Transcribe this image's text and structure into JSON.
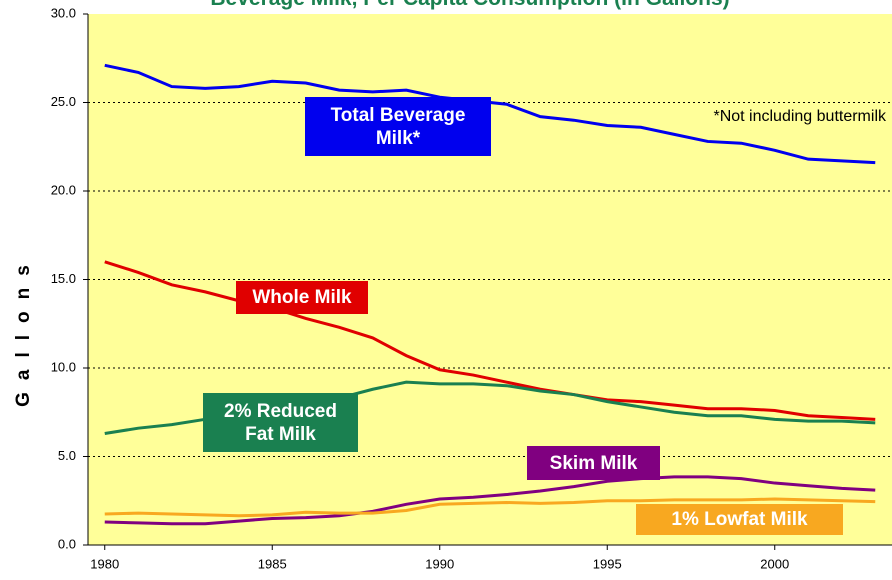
{
  "chart_data": {
    "type": "line",
    "title": "Beverage Milk, Per Capita Consumption (In Gallons)",
    "y_label": "Gallons",
    "annotation": "*Not including buttermilk",
    "x": [
      1980,
      1981,
      1982,
      1983,
      1984,
      1985,
      1986,
      1987,
      1988,
      1989,
      1990,
      1991,
      1992,
      1993,
      1994,
      1995,
      1996,
      1997,
      1998,
      1999,
      2000,
      2001,
      2002,
      2003
    ],
    "xlim": [
      1979.5,
      2003.5
    ],
    "xticks": [
      1980,
      1985,
      1990,
      1995,
      2000
    ],
    "ylim": [
      0,
      30
    ],
    "yticks": [
      {
        "value": 0,
        "label": "0.0"
      },
      {
        "value": 5,
        "label": "5.0"
      },
      {
        "value": 10,
        "label": "10.0"
      },
      {
        "value": 15,
        "label": "15.0"
      },
      {
        "value": 20,
        "label": "20.0"
      },
      {
        "value": 25,
        "label": "25.0"
      },
      {
        "value": 30,
        "label": "30.0"
      }
    ],
    "grid": true,
    "background": "#ffff99",
    "series": [
      {
        "name": "Total Beverage Milk*",
        "color": "#0000ee",
        "values": [
          27.1,
          26.7,
          25.9,
          25.8,
          25.9,
          26.2,
          26.1,
          25.7,
          25.6,
          25.7,
          25.3,
          25.1,
          24.9,
          24.2,
          24.0,
          23.7,
          23.6,
          23.2,
          22.8,
          22.7,
          22.3,
          21.8,
          21.7,
          21.6
        ]
      },
      {
        "name": "Whole Milk",
        "color": "#e00000",
        "values": [
          16.0,
          15.4,
          14.7,
          14.3,
          13.8,
          13.4,
          12.8,
          12.3,
          11.7,
          10.7,
          9.9,
          9.6,
          9.2,
          8.8,
          8.5,
          8.2,
          8.1,
          7.9,
          7.7,
          7.7,
          7.6,
          7.3,
          7.2,
          7.1
        ]
      },
      {
        "name": "2% Reduced Fat Milk",
        "color": "#1a8050",
        "values": [
          6.3,
          6.6,
          6.8,
          7.1,
          7.4,
          7.7,
          7.9,
          8.3,
          8.8,
          9.2,
          9.1,
          9.1,
          9.0,
          8.7,
          8.5,
          8.1,
          7.8,
          7.5,
          7.3,
          7.3,
          7.1,
          7.0,
          7.0,
          6.9
        ]
      },
      {
        "name": "Skim Milk",
        "color": "#800080",
        "values": [
          1.3,
          1.25,
          1.2,
          1.2,
          1.35,
          1.5,
          1.55,
          1.65,
          1.9,
          2.3,
          2.6,
          2.7,
          2.85,
          3.05,
          3.3,
          3.6,
          3.75,
          3.85,
          3.85,
          3.75,
          3.5,
          3.35,
          3.2,
          3.1
        ]
      },
      {
        "name": "1% Lowfat Milk",
        "color": "#f8a820",
        "values": [
          1.75,
          1.8,
          1.75,
          1.7,
          1.65,
          1.7,
          1.85,
          1.8,
          1.8,
          1.95,
          2.3,
          2.35,
          2.4,
          2.35,
          2.4,
          2.5,
          2.5,
          2.55,
          2.55,
          2.55,
          2.6,
          2.55,
          2.5,
          2.45
        ]
      }
    ]
  }
}
